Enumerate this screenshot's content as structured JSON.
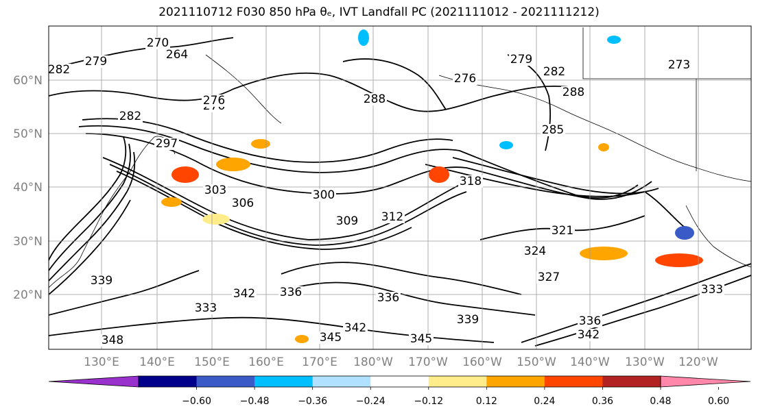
{
  "chart_data": {
    "type": "map-contour",
    "title": "2021110712 F030 850 hPa θₑ, IVT Landfall PC (2021111012 - 2021111212)",
    "lat_ticks": [
      "20°N",
      "30°N",
      "40°N",
      "50°N",
      "60°N"
    ],
    "lon_ticks": [
      "130°E",
      "140°E",
      "150°E",
      "160°E",
      "170°E",
      "180°W",
      "170°W",
      "160°W",
      "150°W",
      "140°W",
      "130°W",
      "120°W"
    ],
    "grid": true,
    "contour_labels": [
      "279",
      "276",
      "270",
      "264",
      "282",
      "276",
      "282",
      "288",
      "276",
      "279",
      "282",
      "288",
      "273",
      "285",
      "297",
      "303",
      "306",
      "300",
      "309",
      "312",
      "318",
      "321",
      "324",
      "327",
      "339",
      "342",
      "336",
      "339",
      "333",
      "336",
      "342",
      "345",
      "342",
      "345",
      "348",
      "336",
      "333"
    ],
    "colorbar": {
      "extend": "both",
      "ticks": [
        "−0.60",
        "−0.48",
        "−0.36",
        "−0.24",
        "−0.12",
        "0.12",
        "0.24",
        "0.36",
        "0.48",
        "0.60"
      ],
      "colors": [
        "#9932CC",
        "#00008B",
        "#3A5BC7",
        "#00BFFF",
        "#B0E2FF",
        "#FFFFFF",
        "#FFEC8B",
        "#FFA500",
        "#FF4500",
        "#B22222",
        "#FF88AA"
      ]
    }
  }
}
